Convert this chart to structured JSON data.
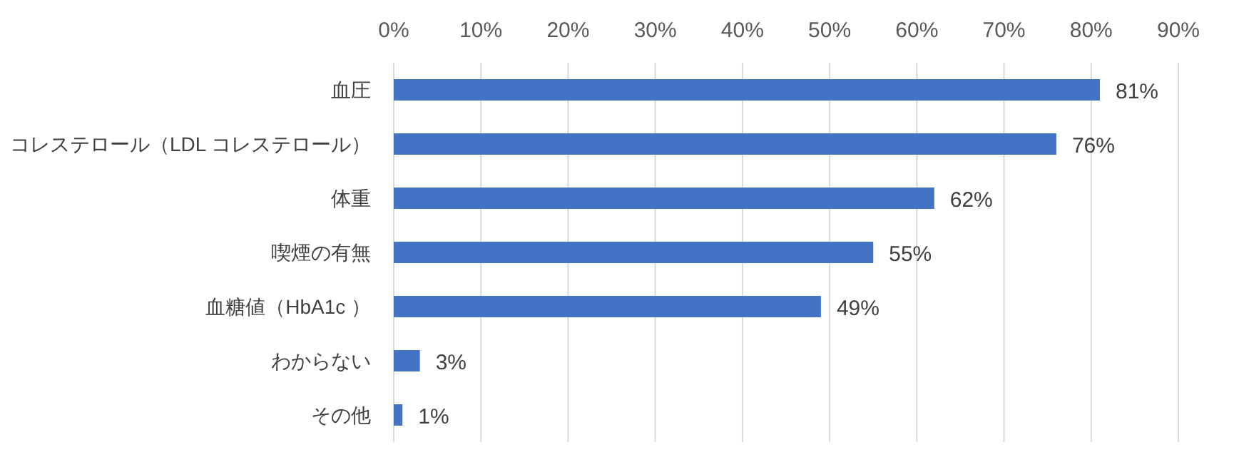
{
  "chart_data": {
    "type": "bar",
    "orientation": "horizontal",
    "categories": [
      "血圧",
      "コレステロール（LDL コレステロール）",
      "体重",
      "喫煙の有無",
      "血糖値（HbA1c ）",
      "わからない",
      "その他"
    ],
    "values": [
      81,
      76,
      62,
      55,
      49,
      3,
      1
    ],
    "value_labels": [
      "81%",
      "76%",
      "62%",
      "55%",
      "49%",
      "3%",
      "1%"
    ],
    "color": "#4472c4",
    "xlim": [
      0,
      90
    ],
    "xticks": [
      {
        "value": 0,
        "label": "0%"
      },
      {
        "value": 10,
        "label": "10%"
      },
      {
        "value": 20,
        "label": "20%"
      },
      {
        "value": 30,
        "label": "30%"
      },
      {
        "value": 40,
        "label": "40%"
      },
      {
        "value": 50,
        "label": "50%"
      },
      {
        "value": 60,
        "label": "60%"
      },
      {
        "value": 70,
        "label": "70%"
      },
      {
        "value": 80,
        "label": "80%"
      },
      {
        "value": 90,
        "label": "90%"
      }
    ],
    "grid": "x"
  }
}
